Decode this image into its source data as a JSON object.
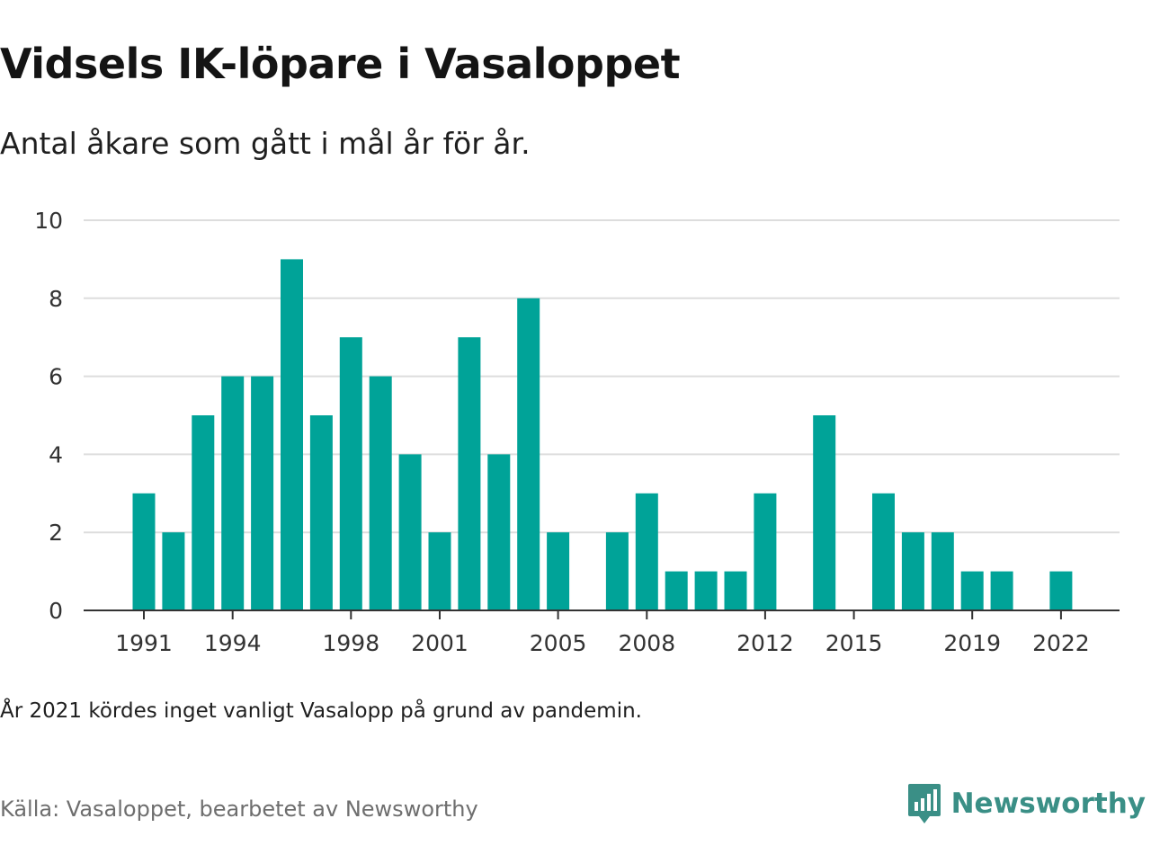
{
  "title": "Vidsels IK-löpare i Vasaloppet",
  "subtitle": "Antal åkare som gått i mål år för år.",
  "note": "År 2021 kördes inget vanligt Vasalopp på grund av pandemin.",
  "source": "Källa: Vasaloppet, bearbetet av Newsworthy",
  "brand": {
    "name": "Newsworthy",
    "icon": "newsworthy-logo-icon",
    "color": "#3a8f86"
  },
  "colors": {
    "bar": "#00a398",
    "grid": "#dddddd",
    "axis": "#333333"
  },
  "chart_data": {
    "type": "bar",
    "title": "Vidsels IK-löpare i Vasaloppet",
    "subtitle": "Antal åkare som gått i mål år för år.",
    "xlabel": "",
    "ylabel": "",
    "ylim": [
      0,
      10
    ],
    "yticks": [
      0,
      2,
      4,
      6,
      8,
      10
    ],
    "xrange": [
      1991,
      2022
    ],
    "xticks": [
      1991,
      1994,
      1998,
      2001,
      2005,
      2008,
      2012,
      2015,
      2019,
      2022
    ],
    "grid": true,
    "legend": "none",
    "x": [
      1991,
      1992,
      1993,
      1994,
      1995,
      1996,
      1997,
      1998,
      1999,
      2000,
      2001,
      2002,
      2003,
      2004,
      2005,
      2006,
      2007,
      2008,
      2009,
      2010,
      2011,
      2012,
      2013,
      2014,
      2015,
      2016,
      2017,
      2018,
      2019,
      2020,
      2021,
      2022
    ],
    "values": [
      3,
      2,
      5,
      6,
      6,
      9,
      5,
      7,
      6,
      4,
      2,
      7,
      4,
      8,
      2,
      0,
      2,
      3,
      1,
      1,
      1,
      3,
      0,
      5,
      0,
      3,
      2,
      2,
      1,
      1,
      0,
      1
    ]
  }
}
